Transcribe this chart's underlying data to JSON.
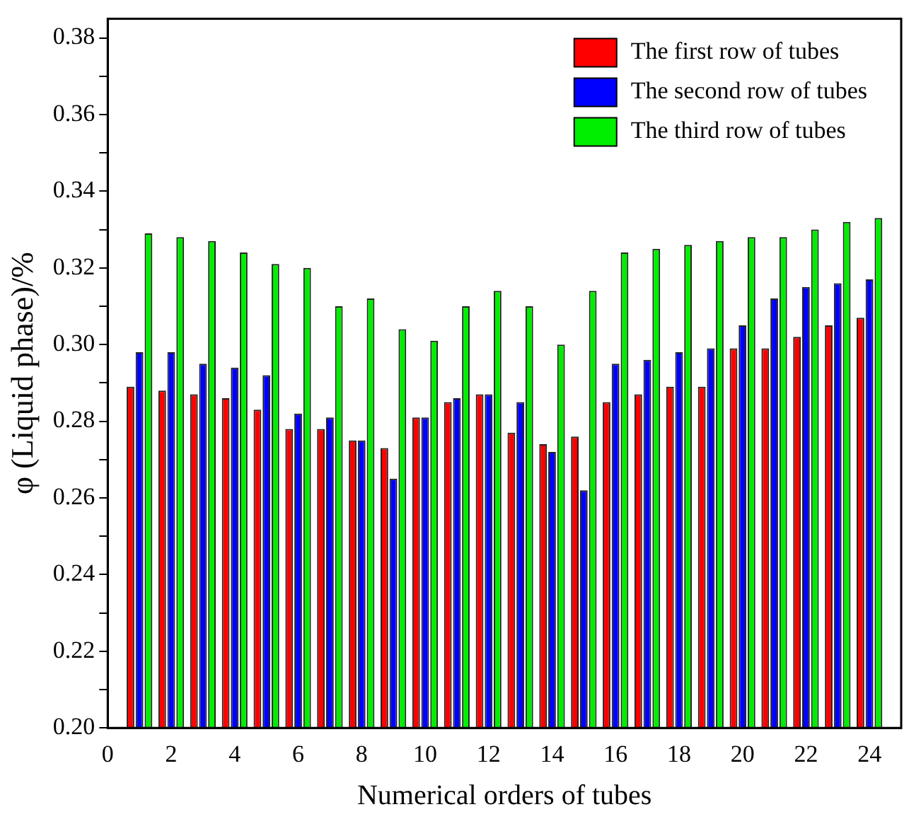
{
  "chart_data": {
    "type": "bar",
    "xlabel": "Numerical orders of tubes",
    "ylabel": "φ (Liquid phase)/%",
    "x": [
      1,
      2,
      3,
      4,
      5,
      6,
      7,
      8,
      9,
      10,
      11,
      12,
      13,
      14,
      15,
      16,
      17,
      18,
      19,
      20,
      21,
      22,
      23,
      24
    ],
    "xlim": [
      0,
      25
    ],
    "xticks": [
      0,
      2,
      4,
      6,
      8,
      10,
      12,
      14,
      16,
      18,
      20,
      22,
      24
    ],
    "ylim": [
      0.2,
      0.385
    ],
    "yticks": [
      {
        "value": 0.2,
        "label": "0.20"
      },
      {
        "value": 0.21,
        "label": null
      },
      0.22,
      {
        "value": 0.23,
        "label": null
      },
      0.24,
      {
        "value": 0.25,
        "label": null
      },
      0.26,
      {
        "value": 0.27,
        "label": null
      },
      0.28,
      {
        "value": 0.29,
        "label": null
      },
      {
        "value": 0.3,
        "label": "0.30"
      },
      {
        "value": 0.31,
        "label": null
      },
      0.32,
      {
        "value": 0.33,
        "label": null
      },
      0.34,
      {
        "value": 0.35,
        "label": null
      },
      0.36,
      {
        "value": 0.37,
        "label": null
      },
      0.38
    ],
    "series": [
      {
        "name": "The first row of tubes",
        "color": "#ff0000",
        "values": [
          0.289,
          0.288,
          0.287,
          0.286,
          0.283,
          0.278,
          0.278,
          0.275,
          0.273,
          0.281,
          0.285,
          0.287,
          0.277,
          0.274,
          0.276,
          0.285,
          0.287,
          0.289,
          0.289,
          0.299,
          0.299,
          0.302,
          0.305,
          0.307
        ]
      },
      {
        "name": "The second row of tubes",
        "color": "#0000ff",
        "values": [
          0.298,
          0.298,
          0.295,
          0.294,
          0.292,
          0.282,
          0.281,
          0.275,
          0.265,
          0.281,
          0.286,
          0.287,
          0.285,
          0.272,
          0.262,
          0.295,
          0.296,
          0.298,
          0.299,
          0.305,
          0.312,
          0.315,
          0.316,
          0.317
        ]
      },
      {
        "name": "The third row of tubes",
        "color": "#00ee00",
        "values": [
          0.329,
          0.328,
          0.327,
          0.324,
          0.321,
          0.32,
          0.31,
          0.312,
          0.304,
          0.301,
          0.31,
          0.314,
          0.31,
          0.3,
          0.314,
          0.324,
          0.325,
          0.326,
          0.327,
          0.328,
          0.328,
          0.33,
          0.332,
          0.333
        ]
      }
    ],
    "grid": false,
    "legend": "top right"
  }
}
